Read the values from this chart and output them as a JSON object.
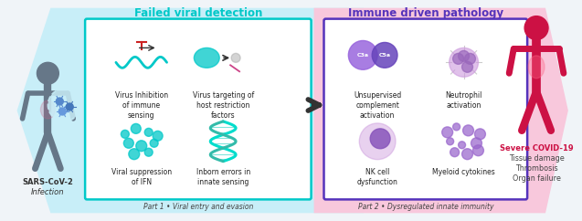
{
  "fig_width": 6.37,
  "fig_height": 2.42,
  "dpi": 100,
  "background_color": "#f0f4f8",
  "title_left": "Failed viral detection",
  "title_right": "Immune driven pathology",
  "title_left_color": "#00c8c8",
  "title_right_color": "#5533bb",
  "left_box_color": "#00c8c8",
  "right_box_color": "#5533bb",
  "part1_label": "Part 1 • Viral entry and evasion",
  "part2_label": "Part 2 • Dysregulated innate immunity",
  "left_person_label1": "SARS-CoV-2",
  "left_person_label2": "Infection",
  "right_labels": [
    "Severe COVID-19",
    "Tissue damage",
    "Thrombosis",
    "Organ failure"
  ],
  "arrow_color": "#333333",
  "left_chevron_color": "#c8eef8",
  "right_chevron_color": "#f8c8dc",
  "text_color": "#222222",
  "label_fontsize": 5.5,
  "title_fontsize": 8.5,
  "part_label_fontsize": 5.5,
  "teal": "#00c8c8",
  "purple": "#7755cc",
  "purple_dark": "#5533bb",
  "purple_light": "#aa88ee",
  "pink_body": "#cc1144",
  "gray_body": "#667788"
}
